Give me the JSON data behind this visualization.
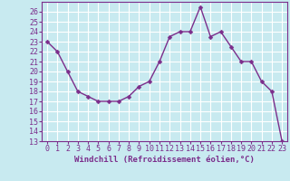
{
  "x": [
    0,
    1,
    2,
    3,
    4,
    5,
    6,
    7,
    8,
    9,
    10,
    11,
    12,
    13,
    14,
    15,
    16,
    17,
    18,
    19,
    20,
    21,
    22,
    23
  ],
  "y": [
    23,
    22,
    20,
    18,
    17.5,
    17,
    17,
    17,
    17.5,
    18.5,
    19,
    21,
    23.5,
    24,
    24,
    26.5,
    23.5,
    24,
    22.5,
    21,
    21,
    19,
    18,
    13
  ],
  "line_color": "#7b2d8b",
  "marker_color": "#7b2d8b",
  "bg_color": "#c8eaf0",
  "grid_color": "#ffffff",
  "xlabel": "Windchill (Refroidissement éolien,°C)",
  "ylim": [
    13,
    27
  ],
  "xlim": [
    -0.5,
    23.5
  ],
  "yticks": [
    13,
    14,
    15,
    16,
    17,
    18,
    19,
    20,
    21,
    22,
    23,
    24,
    25,
    26
  ],
  "xticks": [
    0,
    1,
    2,
    3,
    4,
    5,
    6,
    7,
    8,
    9,
    10,
    11,
    12,
    13,
    14,
    15,
    16,
    17,
    18,
    19,
    20,
    21,
    22,
    23
  ],
  "xlabel_fontsize": 6.5,
  "tick_fontsize": 6.0,
  "line_width": 1.0,
  "marker_size": 2.5
}
